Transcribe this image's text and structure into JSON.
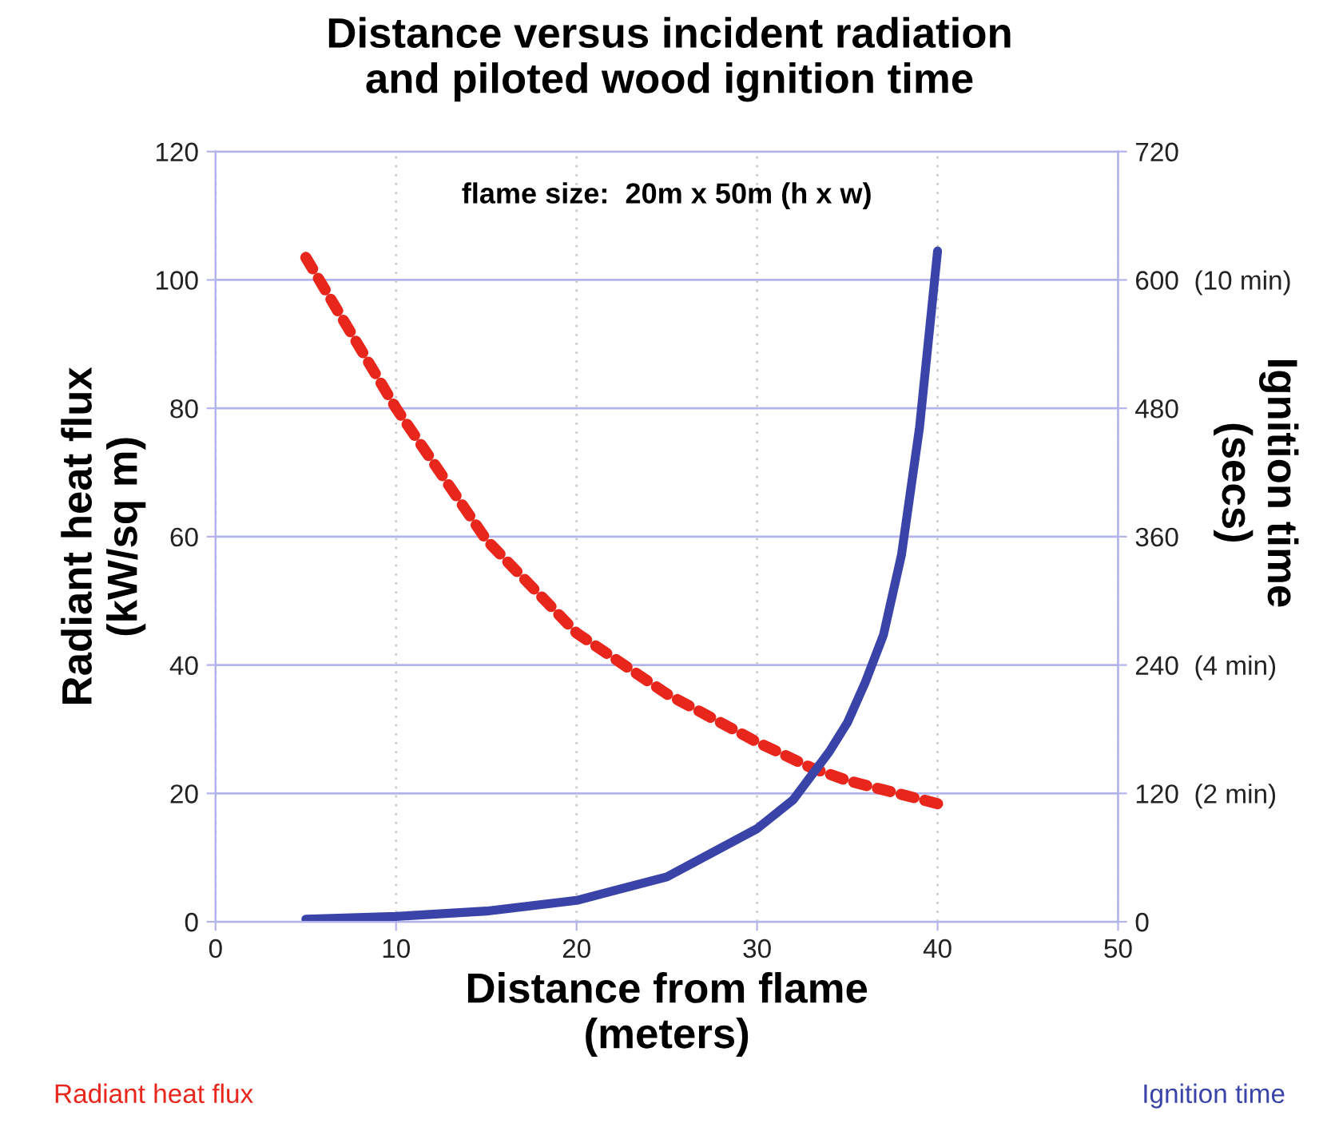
{
  "chart_data": {
    "type": "line",
    "title": "Distance versus incident radiation\nand piloted wood ignition time",
    "xlabel": "Distance from flame\n(meters)",
    "ylabel": "Radiant heat flux\n(kW/sq m)",
    "y2label": "Ignition time\n(secs)",
    "annotations": [
      "flame size:  20m x 50m (h x w)"
    ],
    "series": [
      {
        "name": "Radiant heat flux",
        "color": "#e8261c",
        "line_style": "dotted",
        "x": [
          5,
          10,
          15,
          20,
          25,
          30,
          33,
          35,
          40
        ],
        "values": [
          103.5,
          80,
          59.5,
          45,
          35.5,
          28,
          24,
          22,
          18.4
        ]
      },
      {
        "name": "Ignition time",
        "color": "#3a44a8",
        "line_style": "solid",
        "axis": "y2",
        "x": [
          5,
          10,
          15,
          20,
          25,
          30,
          32,
          34,
          35,
          36,
          37,
          38,
          39,
          40
        ],
        "values": [
          2.5,
          5,
          10,
          20,
          42,
          87,
          114,
          159,
          186,
          224,
          268,
          343,
          462,
          627
        ]
      }
    ],
    "xlim": [
      0,
      50
    ],
    "xticks": [
      0,
      10,
      20,
      30,
      40,
      50
    ],
    "ylim": [
      0,
      120
    ],
    "yticks": [
      0,
      20,
      40,
      60,
      80,
      100,
      120
    ],
    "y2lim": [
      0,
      720
    ],
    "y2ticks": [
      0,
      {
        "value": 120,
        "label": "120  (2 min)"
      },
      {
        "value": 240,
        "label": "240  (4 min)"
      },
      360,
      480,
      {
        "value": 600,
        "label": "600  (10 min)"
      },
      720
    ],
    "grid": true,
    "legend": "bottom",
    "marker": "none"
  }
}
